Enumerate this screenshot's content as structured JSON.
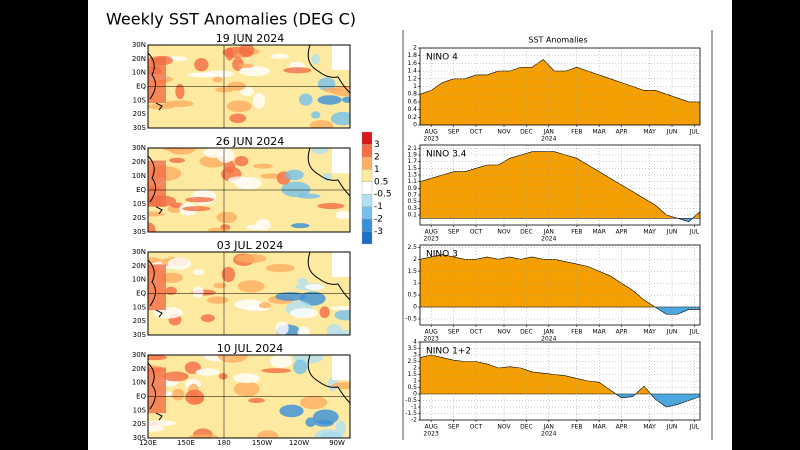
{
  "title": "Weekly SST Anomalies (DEG C)",
  "maps": [
    {
      "date": "19 JUN 2024"
    },
    {
      "date": "26 JUN 2024"
    },
    {
      "date": "03 JUL 2024"
    },
    {
      "date": "10 JUL 2024"
    }
  ],
  "map_lat_labels": [
    "30N",
    "20N",
    "10N",
    "EQ",
    "10S",
    "20S",
    "30S"
  ],
  "map_lon_labels": [
    "120E",
    "150E",
    "180",
    "150W",
    "120W",
    "90W"
  ],
  "colorbar": {
    "labels": [
      3,
      2,
      1,
      0.5,
      -0.5,
      -1,
      -2,
      -3
    ],
    "colors": [
      "#d7191c",
      "#f46d43",
      "#fdae61",
      "#fee9a0",
      "#ffffff",
      "#b3e0f2",
      "#74c0ea",
      "#3a8fd9",
      "#1f6fc9"
    ]
  },
  "panel_title": "SST Anomalies",
  "chart_data": [
    {
      "type": "area",
      "name": "NINO 4",
      "color": "#f5a000",
      "negative_color": "#4aa8e0",
      "x": [
        0,
        2,
        4,
        6,
        8,
        10,
        12,
        14,
        16,
        18,
        20,
        22,
        24,
        26,
        28,
        30,
        32,
        34,
        36,
        38,
        40,
        42,
        44,
        46,
        48,
        50
      ],
      "values": [
        0.8,
        0.9,
        1.1,
        1.2,
        1.2,
        1.3,
        1.3,
        1.4,
        1.4,
        1.5,
        1.5,
        1.7,
        1.4,
        1.4,
        1.5,
        1.4,
        1.3,
        1.2,
        1.1,
        1.0,
        0.9,
        0.9,
        0.8,
        0.7,
        0.6,
        0.6
      ],
      "xlim": [
        0,
        50
      ],
      "ylim": [
        0,
        2
      ],
      "yticks": [
        0,
        0.2,
        0.4,
        0.6,
        0.8,
        1,
        1.2,
        1.4,
        1.6,
        1.8,
        2
      ],
      "xticks": [
        {
          "value": 2,
          "label": "AUG"
        },
        {
          "value": 6,
          "label": "SEP"
        },
        {
          "value": 10,
          "label": "OCT"
        },
        {
          "value": 15,
          "label": "NOV"
        },
        {
          "value": 19,
          "label": "DEC"
        },
        {
          "value": 23,
          "label": "JAN"
        },
        {
          "value": 28,
          "label": "FEB"
        },
        {
          "value": 32,
          "label": "MAR"
        },
        {
          "value": 36,
          "label": "APR"
        },
        {
          "value": 41,
          "label": "MAY"
        },
        {
          "value": 45,
          "label": "JUN"
        },
        {
          "value": 49,
          "label": "JUL"
        }
      ],
      "year_labels": [
        {
          "value": 2,
          "label": "2023"
        },
        {
          "value": 23,
          "label": "2024"
        }
      ],
      "grid": true
    },
    {
      "type": "area",
      "name": "NINO 3.4",
      "color": "#f5a000",
      "negative_color": "#4aa8e0",
      "x": [
        0,
        2,
        4,
        6,
        8,
        10,
        12,
        14,
        16,
        18,
        20,
        22,
        24,
        26,
        28,
        30,
        32,
        34,
        36,
        38,
        40,
        42,
        44,
        46,
        48,
        50
      ],
      "values": [
        1.1,
        1.2,
        1.3,
        1.4,
        1.4,
        1.5,
        1.6,
        1.6,
        1.8,
        1.9,
        2.0,
        2.0,
        2.0,
        1.9,
        1.8,
        1.6,
        1.4,
        1.2,
        1.0,
        0.8,
        0.6,
        0.4,
        0.1,
        0.0,
        -0.1,
        0.2
      ],
      "xlim": [
        0,
        50
      ],
      "ylim": [
        -0.2,
        2.2
      ],
      "yticks": [
        0.1,
        0.3,
        0.5,
        0.7,
        0.9,
        1.1,
        1.3,
        1.5,
        1.7,
        1.9,
        2.1
      ],
      "xticks": [
        {
          "value": 2,
          "label": "AUG"
        },
        {
          "value": 6,
          "label": "SEP"
        },
        {
          "value": 10,
          "label": "OCT"
        },
        {
          "value": 15,
          "label": "NOV"
        },
        {
          "value": 19,
          "label": "DEC"
        },
        {
          "value": 23,
          "label": "JAN"
        },
        {
          "value": 28,
          "label": "FEB"
        },
        {
          "value": 32,
          "label": "MAR"
        },
        {
          "value": 36,
          "label": "APR"
        },
        {
          "value": 41,
          "label": "MAY"
        },
        {
          "value": 45,
          "label": "JUN"
        },
        {
          "value": 49,
          "label": "JUL"
        }
      ],
      "year_labels": [
        {
          "value": 2,
          "label": "2023"
        },
        {
          "value": 23,
          "label": "2024"
        }
      ],
      "grid": true
    },
    {
      "type": "area",
      "name": "NINO 3",
      "color": "#f5a000",
      "negative_color": "#4aa8e0",
      "x": [
        0,
        2,
        4,
        6,
        8,
        10,
        12,
        14,
        16,
        18,
        20,
        22,
        24,
        26,
        28,
        30,
        32,
        34,
        36,
        38,
        40,
        42,
        44,
        46,
        48,
        50
      ],
      "values": [
        2.0,
        2.1,
        2.2,
        2.1,
        2.0,
        2.0,
        2.1,
        2.0,
        2.1,
        2.0,
        2.1,
        2.0,
        2.0,
        1.9,
        1.8,
        1.7,
        1.5,
        1.3,
        1.0,
        0.7,
        0.3,
        0.0,
        -0.3,
        -0.3,
        -0.1,
        -0.1
      ],
      "xlim": [
        0,
        50
      ],
      "ylim": [
        -0.75,
        2.6
      ],
      "yticks": [
        -0.5,
        0,
        0.5,
        1,
        1.5,
        2,
        2.5
      ],
      "xticks": [
        {
          "value": 2,
          "label": "AUG"
        },
        {
          "value": 6,
          "label": "SEP"
        },
        {
          "value": 10,
          "label": "OCT"
        },
        {
          "value": 15,
          "label": "NOV"
        },
        {
          "value": 19,
          "label": "DEC"
        },
        {
          "value": 23,
          "label": "JAN"
        },
        {
          "value": 28,
          "label": "FEB"
        },
        {
          "value": 32,
          "label": "MAR"
        },
        {
          "value": 36,
          "label": "APR"
        },
        {
          "value": 41,
          "label": "MAY"
        },
        {
          "value": 45,
          "label": "JUN"
        },
        {
          "value": 49,
          "label": "JUL"
        }
      ],
      "year_labels": [
        {
          "value": 2,
          "label": "2023"
        },
        {
          "value": 23,
          "label": "2024"
        }
      ],
      "grid": true
    },
    {
      "type": "area",
      "name": "NINO 1+2",
      "color": "#f5a000",
      "negative_color": "#4aa8e0",
      "x": [
        0,
        2,
        4,
        6,
        8,
        10,
        12,
        14,
        16,
        18,
        20,
        22,
        24,
        26,
        28,
        30,
        32,
        34,
        36,
        38,
        40,
        42,
        44,
        46,
        48,
        50
      ],
      "values": [
        2.8,
        3.0,
        2.8,
        2.6,
        2.5,
        2.5,
        2.3,
        2.0,
        2.1,
        2.0,
        1.7,
        1.6,
        1.5,
        1.4,
        1.2,
        1.0,
        0.9,
        0.3,
        -0.3,
        -0.2,
        0.6,
        -0.4,
        -1.0,
        -0.8,
        -0.5,
        -0.2
      ],
      "xlim": [
        0,
        50
      ],
      "ylim": [
        -2,
        4
      ],
      "yticks": [
        -2,
        -1.5,
        -1,
        -0.5,
        0,
        0.5,
        1,
        1.5,
        2,
        2.5,
        3,
        3.5,
        4
      ],
      "xticks": [
        {
          "value": 2,
          "label": "AUG"
        },
        {
          "value": 6,
          "label": "SEP"
        },
        {
          "value": 10,
          "label": "OCT"
        },
        {
          "value": 15,
          "label": "NOV"
        },
        {
          "value": 19,
          "label": "DEC"
        },
        {
          "value": 23,
          "label": "JAN"
        },
        {
          "value": 28,
          "label": "FEB"
        },
        {
          "value": 32,
          "label": "MAR"
        },
        {
          "value": 36,
          "label": "APR"
        },
        {
          "value": 41,
          "label": "MAY"
        },
        {
          "value": 45,
          "label": "JUN"
        },
        {
          "value": 49,
          "label": "JUL"
        }
      ],
      "year_labels": [
        {
          "value": 2,
          "label": "2023"
        },
        {
          "value": 23,
          "label": "2024"
        }
      ],
      "grid": true
    }
  ]
}
